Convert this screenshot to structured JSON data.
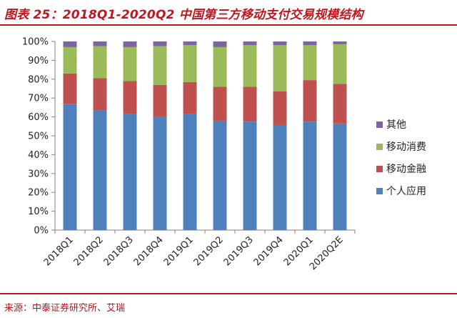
{
  "figure": {
    "title": "图表 25：2018Q1-2020Q2 中国第三方移动支付交易规模结构",
    "source": "来源：中泰证券研究所、艾瑞"
  },
  "colors": {
    "accent_red": "#c0161d",
    "axis": "#808080"
  },
  "chart_data": {
    "type": "bar",
    "stacked": true,
    "percent": true,
    "categories": [
      "2018Q1",
      "2018Q2",
      "2018Q3",
      "2018Q4",
      "2019Q1",
      "2019Q2",
      "2019Q3",
      "2019Q4",
      "2020Q1",
      "2020Q2E"
    ],
    "series": [
      {
        "name": "个人应用",
        "color": "#4f81bd",
        "values": [
          67,
          63.5,
          61.5,
          60,
          61.5,
          58,
          57.5,
          55.5,
          57.5,
          56.5
        ]
      },
      {
        "name": "移动金融",
        "color": "#c0504d",
        "values": [
          16,
          17,
          17.5,
          17,
          17,
          18,
          18.5,
          18,
          22,
          21
        ]
      },
      {
        "name": "移动消费",
        "color": "#9bbb59",
        "values": [
          14,
          17,
          18,
          20.5,
          19.5,
          21,
          22,
          24.5,
          18.5,
          21
        ]
      },
      {
        "name": "其他",
        "color": "#8064a2",
        "values": [
          3,
          2.5,
          3,
          2.5,
          2,
          3,
          2,
          2,
          2,
          1.5
        ]
      }
    ],
    "ylim": [
      0,
      100
    ],
    "yticks": [
      "0%",
      "10%",
      "20%",
      "30%",
      "40%",
      "50%",
      "60%",
      "70%",
      "80%",
      "90%",
      "100%"
    ],
    "legend_position": "right",
    "grid": false
  }
}
